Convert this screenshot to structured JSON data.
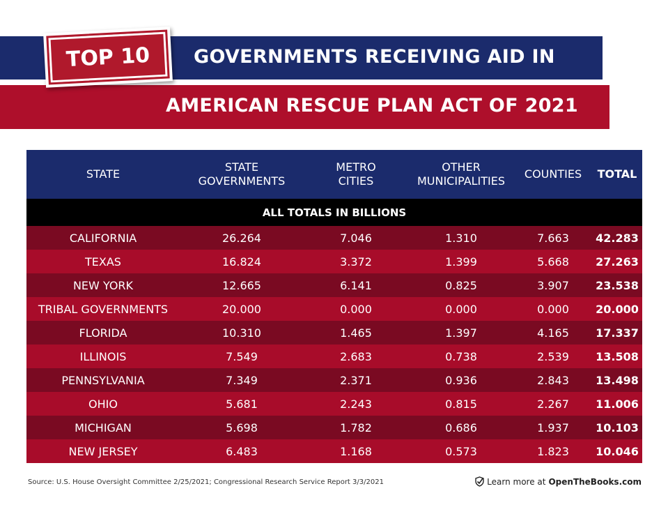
{
  "header": {
    "badge": "TOP 10",
    "title_line1": "GOVERNMENTS RECEIVING AID IN",
    "title_line2": "AMERICAN RESCUE PLAN ACT OF 2021"
  },
  "table": {
    "columns": [
      "STATE",
      "STATE GOVERNMENTS",
      "METRO CITIES",
      "OTHER MUNICIPALITIES",
      "COUNTIES",
      "TOTAL"
    ],
    "note": "ALL TOTALS IN BILLIONS",
    "rows": [
      [
        "CALIFORNIA",
        "26.264",
        "7.046",
        "1.310",
        "7.663",
        "42.283"
      ],
      [
        "TEXAS",
        "16.824",
        "3.372",
        "1.399",
        "5.668",
        "27.263"
      ],
      [
        "NEW YORK",
        "12.665",
        "6.141",
        "0.825",
        "3.907",
        "23.538"
      ],
      [
        "TRIBAL GOVERNMENTS",
        "20.000",
        "0.000",
        "0.000",
        "0.000",
        "20.000"
      ],
      [
        "FLORIDA",
        "10.310",
        "1.465",
        "1.397",
        "4.165",
        "17.337"
      ],
      [
        "ILLINOIS",
        "7.549",
        "2.683",
        "0.738",
        "2.539",
        "13.508"
      ],
      [
        "PENNSYLVANIA",
        "7.349",
        "2.371",
        "0.936",
        "2.843",
        "13.498"
      ],
      [
        "OHIO",
        "5.681",
        "2.243",
        "0.815",
        "2.267",
        "11.006"
      ],
      [
        "MICHIGAN",
        "5.698",
        "1.782",
        "0.686",
        "1.937",
        "10.103"
      ],
      [
        "NEW JERSEY",
        "6.483",
        "1.168",
        "0.573",
        "1.823",
        "10.046"
      ]
    ]
  },
  "footer": {
    "source": "Source: U.S. House Oversight Committee 2/25/2021; Congressional Research Service Report 3/3/2021",
    "learn_more": "Learn more at",
    "site": "OpenTheBooks.com"
  },
  "colors": {
    "navy": "#1b2b6c",
    "red": "#ae0f2b",
    "row_dark": "#7a0a22",
    "row_light": "#a80c2a"
  }
}
